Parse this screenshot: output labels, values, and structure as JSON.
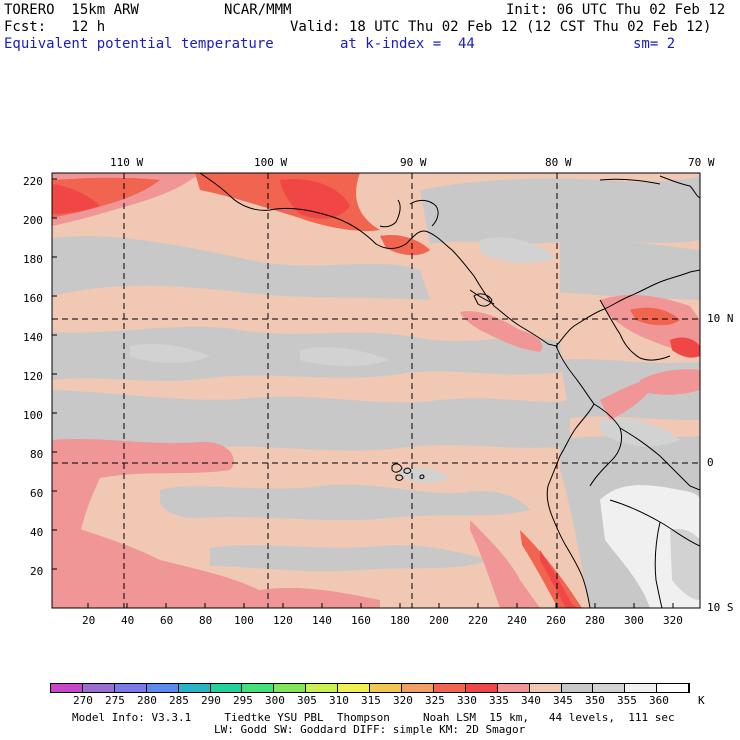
{
  "header": {
    "model": "TORERO  15km ARW",
    "center": "NCAR/MMM",
    "init": "Init: 06 UTC Thu 02 Feb 12",
    "fcst": "Fcst:   12 h",
    "valid": "Valid: 18 UTC Thu 02 Feb 12 (12 CST Thu 02 Feb 12)",
    "field": "Equivalent potential temperature",
    "level": "at k-index =  44",
    "smooth": "sm= 2"
  },
  "map": {
    "lon_labels": [
      "110 W",
      "100 W",
      "90 W",
      "80 W",
      "70 W"
    ],
    "lat_labels": [
      "10 N",
      "0",
      "10 S"
    ],
    "y_ticks": [
      "20",
      "40",
      "60",
      "80",
      "100",
      "120",
      "140",
      "160",
      "180",
      "200",
      "220"
    ],
    "x_ticks": [
      "20",
      "40",
      "60",
      "80",
      "100",
      "120",
      "140",
      "160",
      "180",
      "200",
      "220",
      "240",
      "260",
      "280",
      "300",
      "320"
    ]
  },
  "colorbar": {
    "values": [
      "270",
      "275",
      "280",
      "285",
      "290",
      "295",
      "300",
      "305",
      "310",
      "315",
      "320",
      "325",
      "330",
      "335",
      "340",
      "345",
      "350",
      "355",
      "360"
    ],
    "unit": "K",
    "colors": [
      "#c846c8",
      "#9b6fd2",
      "#7a7ae8",
      "#5a8cf0",
      "#2ab4c8",
      "#22d2a0",
      "#46e07a",
      "#82e65a",
      "#c8f050",
      "#f0f050",
      "#f0c850",
      "#f0a064",
      "#f06450",
      "#f04646",
      "#f09696",
      "#f0c8b4",
      "#c8c8c8",
      "#d2d2d2",
      "#f0f0f0",
      "#ffffff"
    ]
  },
  "footer": {
    "line1": "Model Info: V3.3.1     Tiedtke YSU PBL  Thompson     Noah LSM  15 km,   44 levels,  111 sec",
    "line2": "LW: Godd SW: Goddard DIFF: simple KM: 2D Smagor"
  }
}
